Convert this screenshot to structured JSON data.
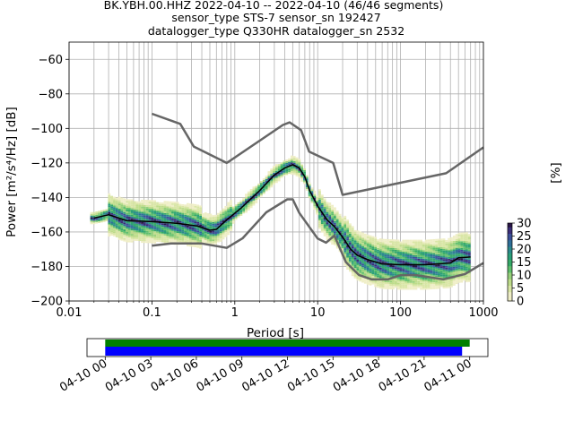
{
  "chart_data": {
    "type": "heatmap",
    "title_lines": [
      "BK.YBH.00.HHZ   2022-04-10 -- 2022-04-10  (46/46 segments)",
      "sensor_type STS-7 sensor_sn 192427",
      "datalogger_type Q330HR datalogger_sn 2532"
    ],
    "xlabel": "Period [s]",
    "ylabel": "Power [m²/s⁴/Hz] [dB]",
    "x_scale": "log",
    "xlim": [
      0.01,
      1000
    ],
    "ylim": [
      -200,
      -50
    ],
    "x_ticks": [
      0.01,
      0.1,
      1,
      10,
      100,
      1000
    ],
    "x_tick_labels": [
      "0.01",
      "0.1",
      "1",
      "10",
      "100",
      "1000"
    ],
    "y_ticks": [
      -200,
      -180,
      -160,
      -140,
      -120,
      -100,
      -80,
      -60
    ],
    "y_tick_labels": [
      "−200",
      "−180",
      "−160",
      "−140",
      "−120",
      "−100",
      "−80",
      "−60"
    ],
    "grid": true,
    "colorbar": {
      "label": "[%]",
      "range": [
        0,
        30
      ],
      "ticks": [
        0,
        5,
        10,
        15,
        20,
        25,
        30
      ],
      "tick_labels": [
        "0",
        "5",
        "10",
        "15",
        "20",
        "25",
        "30"
      ],
      "colormap": "pqlx"
    },
    "noise_models": {
      "high": {
        "color": "#666666",
        "points": [
          [
            0.1,
            -91.5
          ],
          [
            0.22,
            -97.4
          ],
          [
            0.32,
            -110.5
          ],
          [
            0.8,
            -120
          ],
          [
            3.8,
            -98
          ],
          [
            4.6,
            -96.5
          ],
          [
            6.3,
            -101
          ],
          [
            7.9,
            -113.5
          ],
          [
            15.4,
            -120
          ],
          [
            20,
            -138.5
          ],
          [
            354.8,
            -126
          ],
          [
            1000,
            -111
          ]
        ]
      },
      "low": {
        "color": "#666666",
        "points": [
          [
            0.1,
            -168
          ],
          [
            0.17,
            -166.7
          ],
          [
            0.4,
            -166.7
          ],
          [
            0.8,
            -169.2
          ],
          [
            1.24,
            -163.7
          ],
          [
            2.4,
            -148.6
          ],
          [
            4.3,
            -141.1
          ],
          [
            5,
            -141.1
          ],
          [
            6,
            -149
          ],
          [
            10,
            -163.8
          ],
          [
            12.6,
            -166.2
          ],
          [
            15.9,
            -162.1
          ],
          [
            21.9,
            -177.5
          ],
          [
            31.6,
            -185
          ],
          [
            45,
            -187.5
          ],
          [
            70,
            -187.5
          ],
          [
            101,
            -185
          ],
          [
            154,
            -185
          ],
          [
            328,
            -187.5
          ],
          [
            600,
            -184.4
          ],
          [
            1000,
            -178
          ]
        ]
      }
    },
    "mode_line": {
      "color": "#000000",
      "points": [
        [
          0.02,
          -152
        ],
        [
          0.03,
          -150
        ],
        [
          0.05,
          -153.5
        ],
        [
          0.1,
          -154
        ],
        [
          0.2,
          -155
        ],
        [
          0.35,
          -156.5
        ],
        [
          0.5,
          -159
        ],
        [
          0.6,
          -158.5
        ],
        [
          0.8,
          -153
        ],
        [
          1.2,
          -146
        ],
        [
          2,
          -136
        ],
        [
          3,
          -127
        ],
        [
          4,
          -123
        ],
        [
          5,
          -121
        ],
        [
          6,
          -123
        ],
        [
          7,
          -128
        ],
        [
          8,
          -136
        ],
        [
          10,
          -145
        ],
        [
          13,
          -153
        ],
        [
          16,
          -157
        ],
        [
          20,
          -163
        ],
        [
          25,
          -170
        ],
        [
          30,
          -173.5
        ],
        [
          40,
          -176
        ],
        [
          60,
          -178.5
        ],
        [
          100,
          -179
        ],
        [
          200,
          -179
        ],
        [
          400,
          -178
        ],
        [
          500,
          -175
        ],
        [
          700,
          -174.5
        ]
      ]
    },
    "density_bands": [
      {
        "p0": 0.018,
        "p1": 0.03,
        "spread": 2
      },
      {
        "p0": 0.03,
        "p1": 0.4,
        "spread": 9
      },
      {
        "p0": 0.4,
        "p1": 0.9,
        "spread": 6
      },
      {
        "p0": 0.9,
        "p1": 10,
        "spread": 3
      },
      {
        "p0": 10,
        "p1": 20,
        "spread": 8
      },
      {
        "p0": 20,
        "p1": 700,
        "spread": 11
      }
    ],
    "timeline": {
      "tick_labels": [
        "04-10 00",
        "04-10 03",
        "04-10 06",
        "04-10 09",
        "04-10 12",
        "04-10 15",
        "04-10 18",
        "04-10 21",
        "04-11 00"
      ],
      "tick_hours": [
        0,
        3,
        6,
        9,
        12,
        15,
        18,
        21,
        24
      ],
      "range_hours": [
        -1.2,
        25.2
      ],
      "green_bar_hours": [
        0,
        24.0
      ],
      "blue_bar_hours": [
        0,
        23.5
      ],
      "green_color": "#008000",
      "blue_color": "#0000ff"
    }
  }
}
